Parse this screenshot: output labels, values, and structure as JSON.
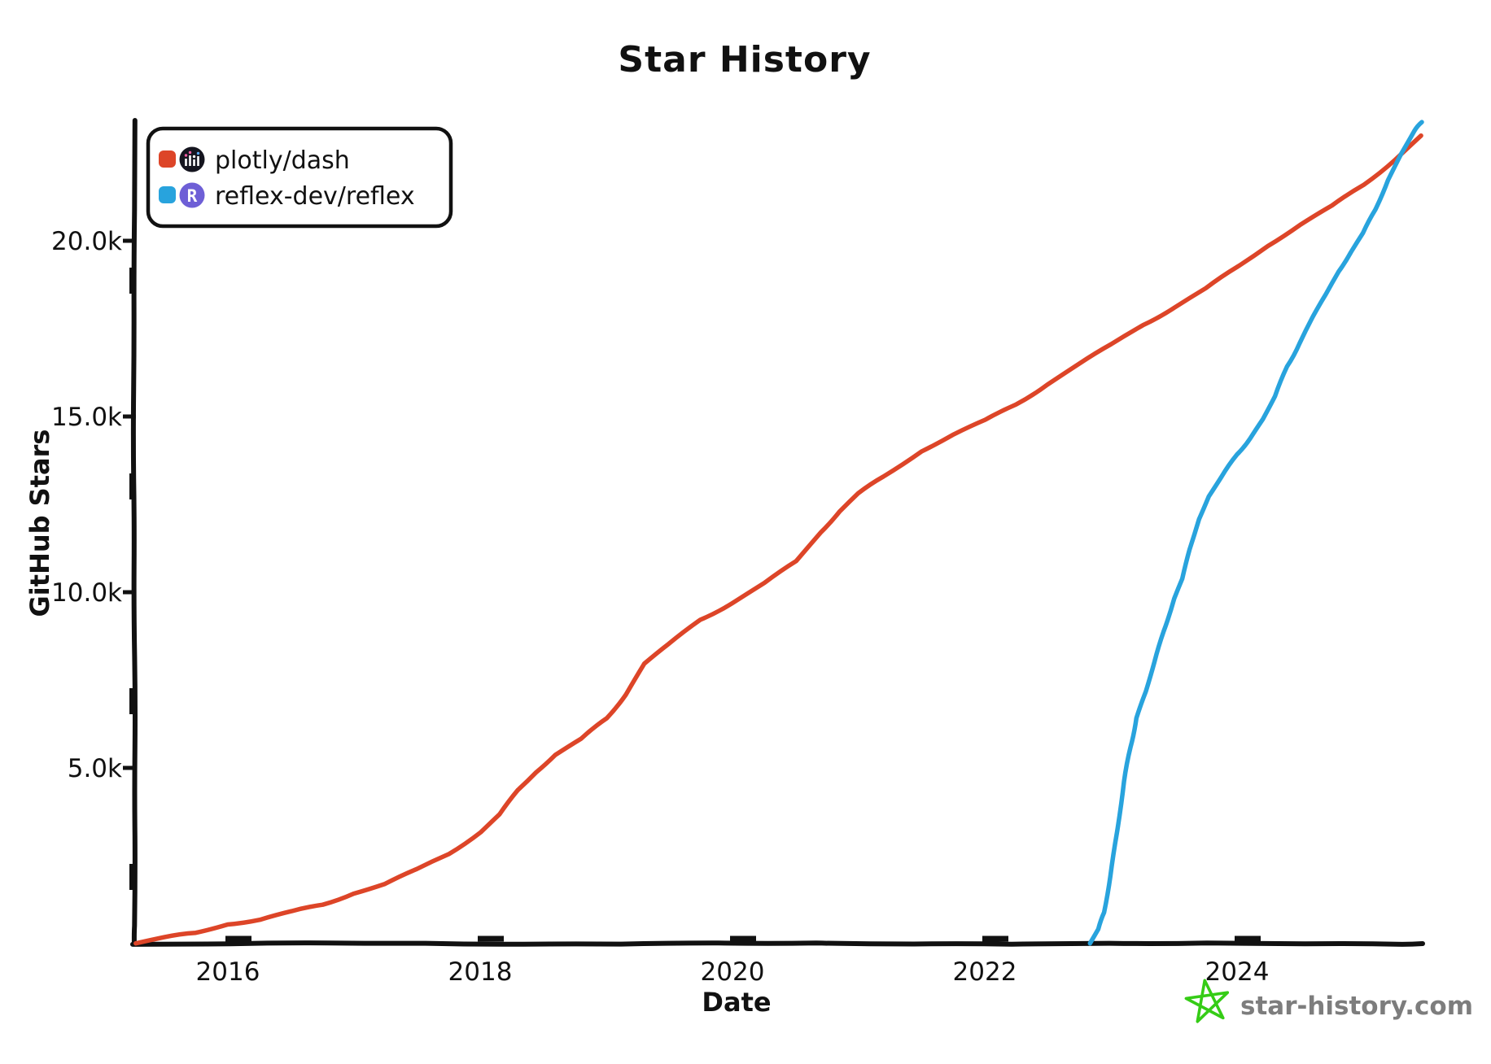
{
  "chart_data": {
    "type": "line",
    "title": "Star History",
    "xlabel": "Date",
    "ylabel": "GitHub Stars",
    "xlim": [
      2015.25,
      2025.5
    ],
    "ylim": [
      0,
      23900
    ],
    "grid": false,
    "legend_position": "top-left",
    "x_ticks": [
      {
        "value": 2016,
        "label": "2016"
      },
      {
        "value": 2018,
        "label": "2018"
      },
      {
        "value": 2020,
        "label": "2020"
      },
      {
        "value": 2022,
        "label": "2022"
      },
      {
        "value": 2024,
        "label": "2024"
      }
    ],
    "y_ticks": [
      {
        "value": 5000,
        "label": "5.0k"
      },
      {
        "value": 10000,
        "label": "10.0k"
      },
      {
        "value": 15000,
        "label": "15.0k"
      },
      {
        "value": 20000,
        "label": "20.0k"
      }
    ],
    "x_unit": "decimal_year",
    "series": [
      {
        "name": "plotly/dash",
        "color": "#dd4528",
        "points": [
          [
            2015.27,
            30
          ],
          [
            2015.5,
            160
          ],
          [
            2015.75,
            330
          ],
          [
            2016.0,
            520
          ],
          [
            2016.25,
            700
          ],
          [
            2016.5,
            900
          ],
          [
            2016.75,
            1130
          ],
          [
            2017.0,
            1400
          ],
          [
            2017.25,
            1720
          ],
          [
            2017.5,
            2100
          ],
          [
            2017.75,
            2570
          ],
          [
            2018.0,
            3150
          ],
          [
            2018.15,
            3700
          ],
          [
            2018.3,
            4350
          ],
          [
            2018.45,
            4900
          ],
          [
            2018.6,
            5350
          ],
          [
            2018.8,
            5850
          ],
          [
            2019.0,
            6400
          ],
          [
            2019.15,
            7100
          ],
          [
            2019.3,
            7950
          ],
          [
            2019.5,
            8550
          ],
          [
            2019.75,
            9200
          ],
          [
            2020.0,
            9700
          ],
          [
            2020.25,
            10250
          ],
          [
            2020.5,
            10900
          ],
          [
            2020.7,
            11700
          ],
          [
            2020.85,
            12300
          ],
          [
            2021.0,
            12800
          ],
          [
            2021.2,
            13300
          ],
          [
            2021.5,
            14000
          ],
          [
            2021.75,
            14500
          ],
          [
            2022.0,
            14900
          ],
          [
            2022.25,
            15350
          ],
          [
            2022.5,
            15900
          ],
          [
            2022.75,
            16500
          ],
          [
            2023.0,
            17050
          ],
          [
            2023.25,
            17600
          ],
          [
            2023.5,
            18100
          ],
          [
            2023.75,
            18650
          ],
          [
            2024.0,
            19250
          ],
          [
            2024.25,
            19850
          ],
          [
            2024.5,
            20450
          ],
          [
            2024.75,
            21000
          ],
          [
            2025.0,
            21600
          ],
          [
            2025.25,
            22300
          ],
          [
            2025.46,
            23000
          ]
        ]
      },
      {
        "name": "reflex-dev/reflex",
        "color": "#28a3dd",
        "points": [
          [
            2022.83,
            20
          ],
          [
            2022.9,
            400
          ],
          [
            2022.95,
            900
          ],
          [
            2023.0,
            1900
          ],
          [
            2023.05,
            3200
          ],
          [
            2023.1,
            4600
          ],
          [
            2023.15,
            5600
          ],
          [
            2023.2,
            6400
          ],
          [
            2023.28,
            7200
          ],
          [
            2023.35,
            8000
          ],
          [
            2023.42,
            8900
          ],
          [
            2023.5,
            9800
          ],
          [
            2023.56,
            10400
          ],
          [
            2023.62,
            11200
          ],
          [
            2023.7,
            12100
          ],
          [
            2023.78,
            12700
          ],
          [
            2023.88,
            13300
          ],
          [
            2024.0,
            13900
          ],
          [
            2024.1,
            14400
          ],
          [
            2024.2,
            14900
          ],
          [
            2024.3,
            15600
          ],
          [
            2024.4,
            16400
          ],
          [
            2024.5,
            17100
          ],
          [
            2024.6,
            17800
          ],
          [
            2024.7,
            18500
          ],
          [
            2024.8,
            19100
          ],
          [
            2024.9,
            19700
          ],
          [
            2025.0,
            20200
          ],
          [
            2025.1,
            20900
          ],
          [
            2025.2,
            21700
          ],
          [
            2025.3,
            22500
          ],
          [
            2025.4,
            23100
          ],
          [
            2025.46,
            23400
          ]
        ]
      }
    ]
  },
  "legend": {
    "items": [
      {
        "label": "plotly/dash",
        "marker_color": "#dd4528",
        "avatar_icon": "plotly-logo",
        "avatar_bg": "#15151f"
      },
      {
        "label": "reflex-dev/reflex",
        "marker_color": "#28a3dd",
        "avatar_icon": "reflex-logo",
        "avatar_bg": "#6e5fd6"
      }
    ]
  },
  "watermark": {
    "text": "star-history.com",
    "star_color": "#35cc16",
    "text_color": "#7d7d7d"
  },
  "colors": {
    "axis": "#111111",
    "background": "#ffffff"
  }
}
